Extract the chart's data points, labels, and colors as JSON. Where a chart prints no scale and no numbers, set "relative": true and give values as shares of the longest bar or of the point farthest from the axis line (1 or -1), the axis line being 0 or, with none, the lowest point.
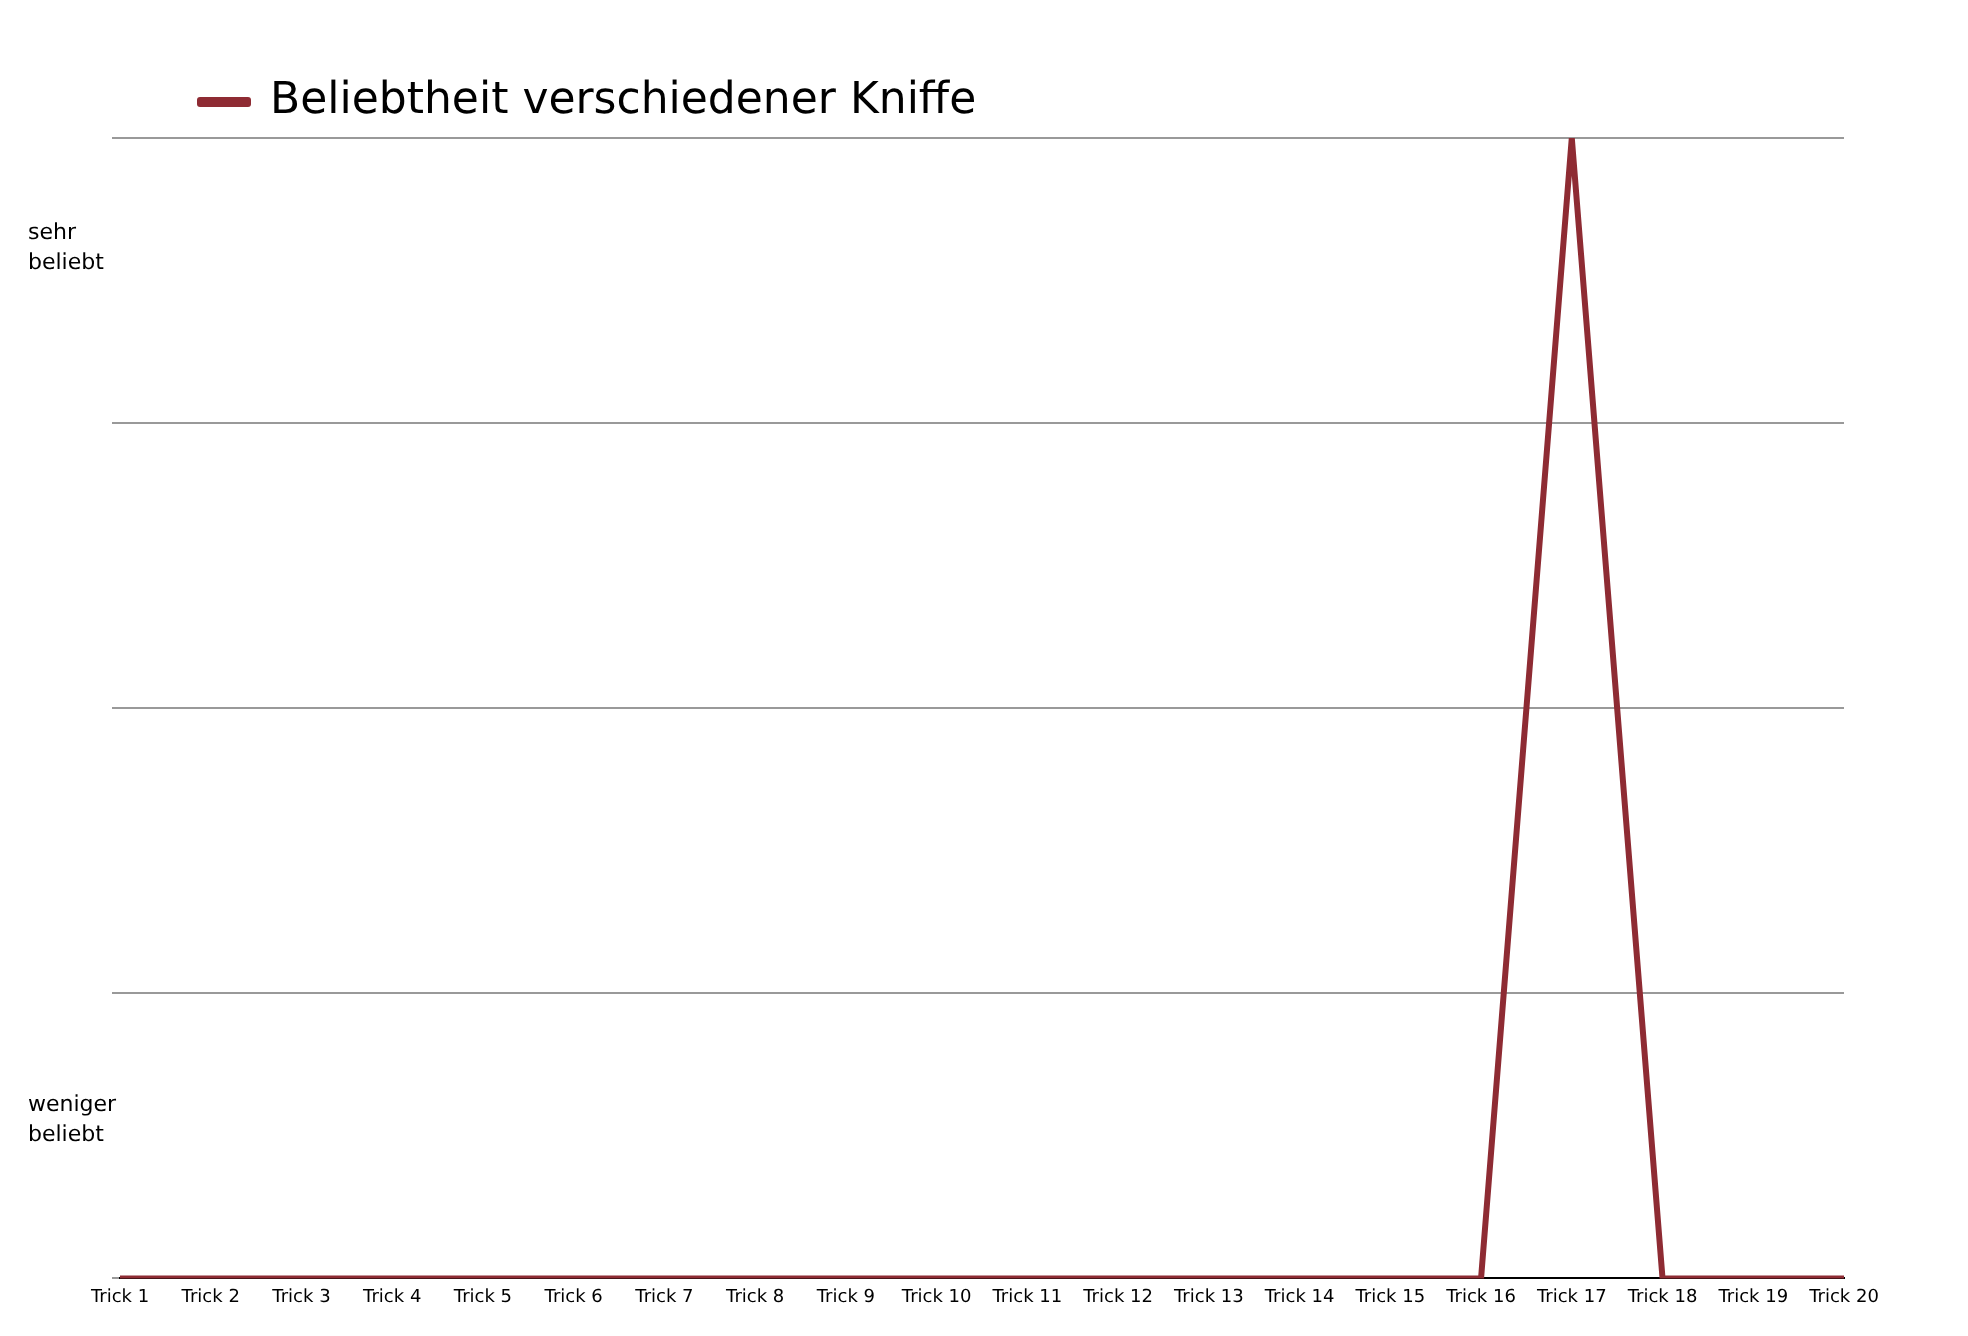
{
  "chart_data": {
    "type": "line",
    "relative": true,
    "categories": [
      "Trick 1",
      "Trick 2",
      "Trick 3",
      "Trick 4",
      "Trick 5",
      "Trick 6",
      "Trick 7",
      "Trick 8",
      "Trick 9",
      "Trick 10",
      "Trick 11",
      "Trick 12",
      "Trick 13",
      "Trick 14",
      "Trick 15",
      "Trick 16",
      "Trick 17",
      "Trick 18",
      "Trick 19",
      "Trick 20"
    ],
    "series": [
      {
        "name": "Beliebtheit verschiedener Kniffe",
        "color": "#8e2b33",
        "values": [
          0,
          0,
          0,
          0,
          0,
          0,
          0,
          0,
          0,
          0,
          0,
          0,
          0,
          0,
          0,
          0,
          1,
          0,
          0,
          0
        ]
      }
    ],
    "annotations": [
      "sehr\nbeliebt",
      "weniger\nbeliebt"
    ],
    "grid": "y",
    "legend": "top left",
    "marker": "none",
    "line_style": "solid"
  }
}
